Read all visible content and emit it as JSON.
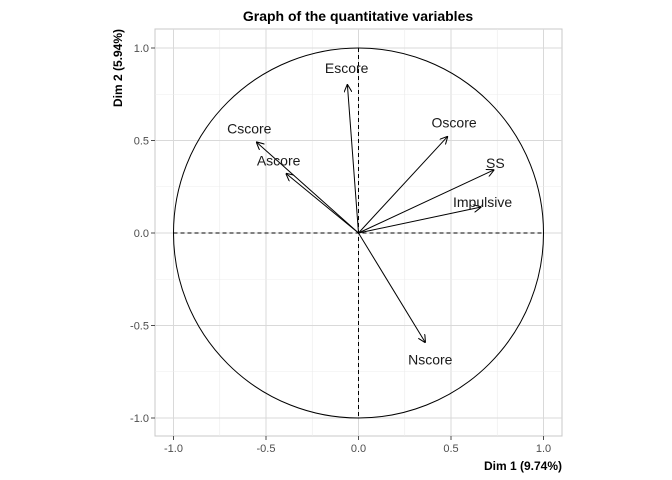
{
  "chart_data": {
    "type": "scatter",
    "title": "Graph of the quantitative variables",
    "xlabel": "Dim 1 (9.74%)",
    "ylabel": "Dim 2 (5.94%)",
    "xlim": [
      -1.0,
      1.0
    ],
    "ylim": [
      -1.0,
      1.0
    ],
    "x_ticks": [
      -1.0,
      -0.5,
      0.0,
      0.5,
      1.0
    ],
    "y_ticks": [
      -1.0,
      -0.5,
      0.0,
      0.5,
      1.0
    ],
    "x_tick_labels": [
      "-1.0",
      "-0.5",
      "0.0",
      "0.5",
      "1.0"
    ],
    "y_tick_labels": [
      "-1.0",
      "-0.5",
      "0.0",
      "0.5",
      "1.0"
    ],
    "grid": true,
    "unit_circle": true,
    "variables": [
      {
        "name": "Escore",
        "x": -0.06,
        "y": 0.8
      },
      {
        "name": "Oscore",
        "x": 0.48,
        "y": 0.52
      },
      {
        "name": "SS",
        "x": 0.73,
        "y": 0.34
      },
      {
        "name": "Cscore",
        "x": -0.55,
        "y": 0.49
      },
      {
        "name": "Ascore",
        "x": -0.39,
        "y": 0.32
      },
      {
        "name": "Impulsive",
        "x": 0.66,
        "y": 0.14
      },
      {
        "name": "Nscore",
        "x": 0.36,
        "y": -0.59
      }
    ]
  }
}
